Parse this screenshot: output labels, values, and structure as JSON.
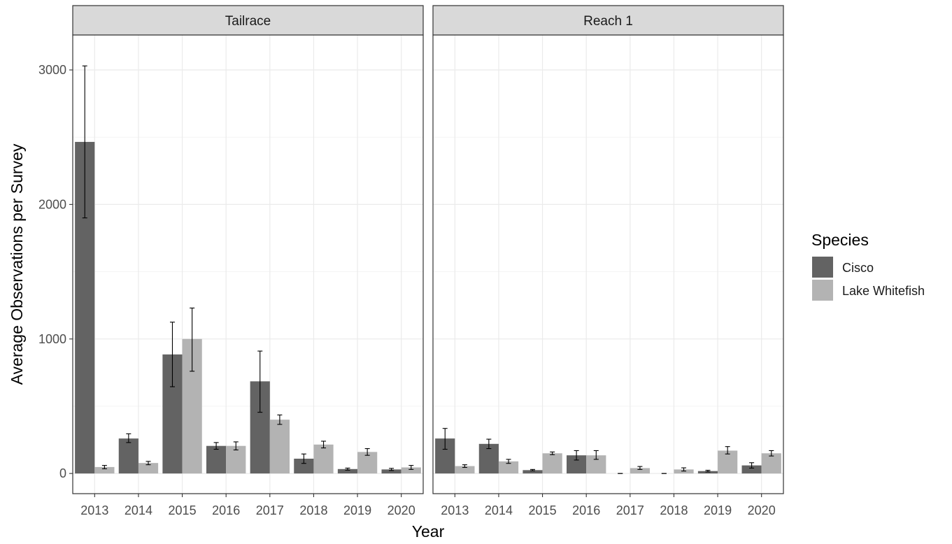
{
  "chart_data": {
    "type": "bar",
    "xlabel": "Year",
    "ylabel": "Average Observations per Survey",
    "ylim": [
      -150,
      3260
    ],
    "yticks": [
      0,
      1000,
      2000,
      3000
    ],
    "categories": [
      "2013",
      "2014",
      "2015",
      "2016",
      "2017",
      "2018",
      "2019",
      "2020"
    ],
    "grid": true,
    "legend": {
      "title": "Species",
      "placement": "right",
      "entries": [
        {
          "name": "Cisco",
          "color": "#636363"
        },
        {
          "name": "Lake Whitefish",
          "color": "#b3b3b3"
        }
      ]
    },
    "panels": [
      {
        "title": "Tailrace",
        "series": [
          {
            "name": "Cisco",
            "values": [
              2465,
              260,
              885,
              205,
              685,
              110,
              33,
              30
            ],
            "err_low": [
              1900,
              230,
              645,
              180,
              455,
              75,
              25,
              22
            ],
            "err_high": [
              3030,
              295,
              1125,
              230,
              910,
              145,
              40,
              38
            ]
          },
          {
            "name": "Lake Whitefish",
            "values": [
              48,
              78,
              1000,
              205,
              400,
              215,
              160,
              45
            ],
            "err_low": [
              35,
              65,
              760,
              175,
              365,
              190,
              135,
              30
            ],
            "err_high": [
              60,
              90,
              1230,
              235,
              435,
              240,
              185,
              60
            ]
          }
        ]
      },
      {
        "title": "Reach 1",
        "series": [
          {
            "name": "Cisco",
            "values": [
              260,
              220,
              25,
              135,
              0,
              0,
              18,
              60
            ],
            "err_low": [
              180,
              185,
              20,
              100,
              0,
              0,
              12,
              40
            ],
            "err_high": [
              335,
              255,
              30,
              170,
              0,
              0,
              24,
              80
            ]
          },
          {
            "name": "Lake Whitefish",
            "values": [
              55,
              90,
              150,
              135,
              40,
              30,
              170,
              150
            ],
            "err_low": [
              45,
              75,
              140,
              105,
              30,
              18,
              145,
              130
            ],
            "err_high": [
              65,
              105,
              160,
              170,
              52,
              42,
              200,
              170
            ]
          }
        ]
      }
    ]
  }
}
